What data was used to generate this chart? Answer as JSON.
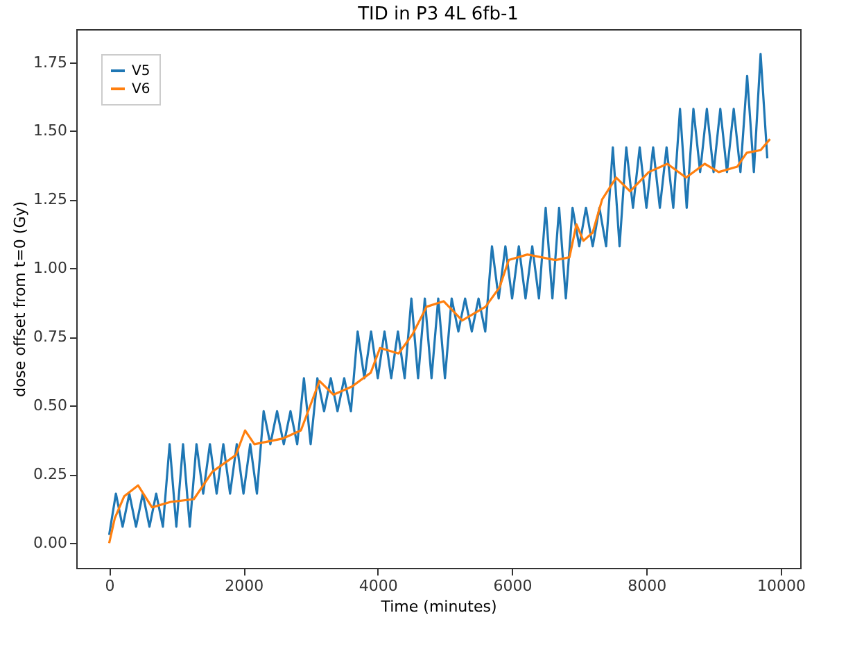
{
  "chart_data": {
    "type": "line",
    "title": "TID in P3 4L 6fb-1",
    "xlabel": "Time (minutes)",
    "ylabel": "dose offset from t=0 (Gy)",
    "xlim": [
      -490,
      10290
    ],
    "ylim": [
      -0.09,
      1.87
    ],
    "xticks": [
      0,
      2000,
      4000,
      6000,
      8000,
      10000
    ],
    "yticks": [
      {
        "value": 0,
        "label": "0.00"
      },
      {
        "value": 0.25,
        "label": "0.25"
      },
      {
        "value": 0.5,
        "label": "0.50"
      },
      {
        "value": 0.75,
        "label": "0.75"
      },
      {
        "value": 1,
        "label": "1.00"
      },
      {
        "value": 1.25,
        "label": "1.25"
      },
      {
        "value": 1.5,
        "label": "1.50"
      },
      {
        "value": 1.75,
        "label": "1.75"
      }
    ],
    "grid": false,
    "legend": "top left",
    "marker": "none",
    "line_style": "solid",
    "series": [
      {
        "name": "V5",
        "color": "#1f77b4",
        "x": [
          0,
          100,
          200,
          300,
          400,
          500,
          600,
          700,
          800,
          900,
          1000,
          1100,
          1200,
          1300,
          1400,
          1500,
          1600,
          1700,
          1800,
          1900,
          2000,
          2100,
          2200,
          2300,
          2400,
          2500,
          2600,
          2700,
          2800,
          2900,
          3000,
          3100,
          3200,
          3300,
          3400,
          3500,
          3600,
          3700,
          3800,
          3900,
          4000,
          4100,
          4200,
          4300,
          4400,
          4500,
          4600,
          4700,
          4800,
          4900,
          5000,
          5100,
          5200,
          5300,
          5400,
          5500,
          5600,
          5700,
          5800,
          5900,
          6000,
          6100,
          6200,
          6300,
          6400,
          6500,
          6600,
          6700,
          6800,
          6900,
          7000,
          7100,
          7200,
          7300,
          7400,
          7500,
          7600,
          7700,
          7800,
          7900,
          8000,
          8100,
          8200,
          8300,
          8400,
          8500,
          8600,
          8700,
          8800,
          8900,
          9000,
          9100,
          9200,
          9300,
          9400,
          9500,
          9600,
          9700,
          9800
        ],
        "values": [
          0.03,
          0.18,
          0.06,
          0.18,
          0.06,
          0.18,
          0.06,
          0.18,
          0.06,
          0.36,
          0.06,
          0.36,
          0.06,
          0.36,
          0.18,
          0.36,
          0.18,
          0.36,
          0.18,
          0.36,
          0.18,
          0.36,
          0.18,
          0.48,
          0.36,
          0.48,
          0.36,
          0.48,
          0.36,
          0.6,
          0.36,
          0.6,
          0.48,
          0.6,
          0.48,
          0.6,
          0.48,
          0.77,
          0.6,
          0.77,
          0.6,
          0.77,
          0.6,
          0.77,
          0.6,
          0.89,
          0.6,
          0.89,
          0.6,
          0.89,
          0.6,
          0.89,
          0.77,
          0.89,
          0.77,
          0.89,
          0.77,
          1.08,
          0.89,
          1.08,
          0.89,
          1.08,
          0.89,
          1.08,
          0.89,
          1.22,
          0.89,
          1.22,
          0.89,
          1.22,
          1.08,
          1.22,
          1.08,
          1.22,
          1.08,
          1.44,
          1.08,
          1.44,
          1.22,
          1.44,
          1.22,
          1.44,
          1.22,
          1.44,
          1.22,
          1.58,
          1.22,
          1.58,
          1.35,
          1.58,
          1.35,
          1.58,
          1.35,
          1.58,
          1.35,
          1.7,
          1.35,
          1.78,
          1.4
        ]
      },
      {
        "name": "V6",
        "color": "#ff7f0e",
        "x": [
          0,
          83,
          222,
          430,
          638,
          915,
          1261,
          1538,
          1885,
          2024,
          2162,
          2578,
          2855,
          3132,
          3340,
          3617,
          3895,
          4033,
          4310,
          4518,
          4726,
          4980,
          5257,
          5604,
          5812,
          5950,
          6229,
          6646,
          6854,
          6958,
          7062,
          7200,
          7340,
          7550,
          7757,
          8035,
          8312,
          8590,
          8868,
          9076,
          9354,
          9493,
          9701,
          9840
        ],
        "values": [
          0.0,
          0.09,
          0.17,
          0.21,
          0.13,
          0.15,
          0.16,
          0.26,
          0.32,
          0.41,
          0.36,
          0.38,
          0.41,
          0.59,
          0.54,
          0.57,
          0.62,
          0.71,
          0.69,
          0.76,
          0.86,
          0.88,
          0.81,
          0.86,
          0.93,
          1.03,
          1.05,
          1.03,
          1.04,
          1.16,
          1.1,
          1.13,
          1.25,
          1.33,
          1.28,
          1.35,
          1.38,
          1.33,
          1.38,
          1.35,
          1.37,
          1.42,
          1.43,
          1.47
        ]
      }
    ]
  }
}
